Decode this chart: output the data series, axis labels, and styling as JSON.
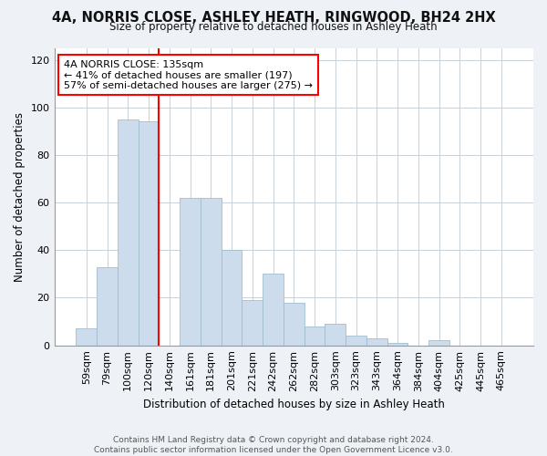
{
  "title": "4A, NORRIS CLOSE, ASHLEY HEATH, RINGWOOD, BH24 2HX",
  "subtitle": "Size of property relative to detached houses in Ashley Heath",
  "xlabel": "Distribution of detached houses by size in Ashley Heath",
  "ylabel": "Number of detached properties",
  "footer_line1": "Contains HM Land Registry data © Crown copyright and database right 2024.",
  "footer_line2": "Contains public sector information licensed under the Open Government Licence v3.0.",
  "categories": [
    "59sqm",
    "79sqm",
    "100sqm",
    "120sqm",
    "140sqm",
    "161sqm",
    "181sqm",
    "201sqm",
    "221sqm",
    "242sqm",
    "262sqm",
    "282sqm",
    "303sqm",
    "323sqm",
    "343sqm",
    "364sqm",
    "384sqm",
    "404sqm",
    "425sqm",
    "445sqm",
    "465sqm"
  ],
  "values": [
    7,
    33,
    95,
    94,
    0,
    62,
    62,
    40,
    19,
    30,
    18,
    8,
    9,
    4,
    3,
    1,
    0,
    2,
    0,
    0,
    0
  ],
  "bar_color": "#ccdcec",
  "bar_edge_color": "#a0bcd0",
  "vline_x_index": 4,
  "vline_color": "red",
  "annotation_text": "4A NORRIS CLOSE: 135sqm\n← 41% of detached houses are smaller (197)\n57% of semi-detached houses are larger (275) →",
  "annotation_box_color": "white",
  "annotation_box_edge_color": "red",
  "ylim": [
    0,
    125
  ],
  "yticks": [
    0,
    20,
    40,
    60,
    80,
    100,
    120
  ],
  "bg_color": "#eef2f7",
  "plot_bg_color": "#ffffff",
  "grid_color": "#c8d0d8"
}
